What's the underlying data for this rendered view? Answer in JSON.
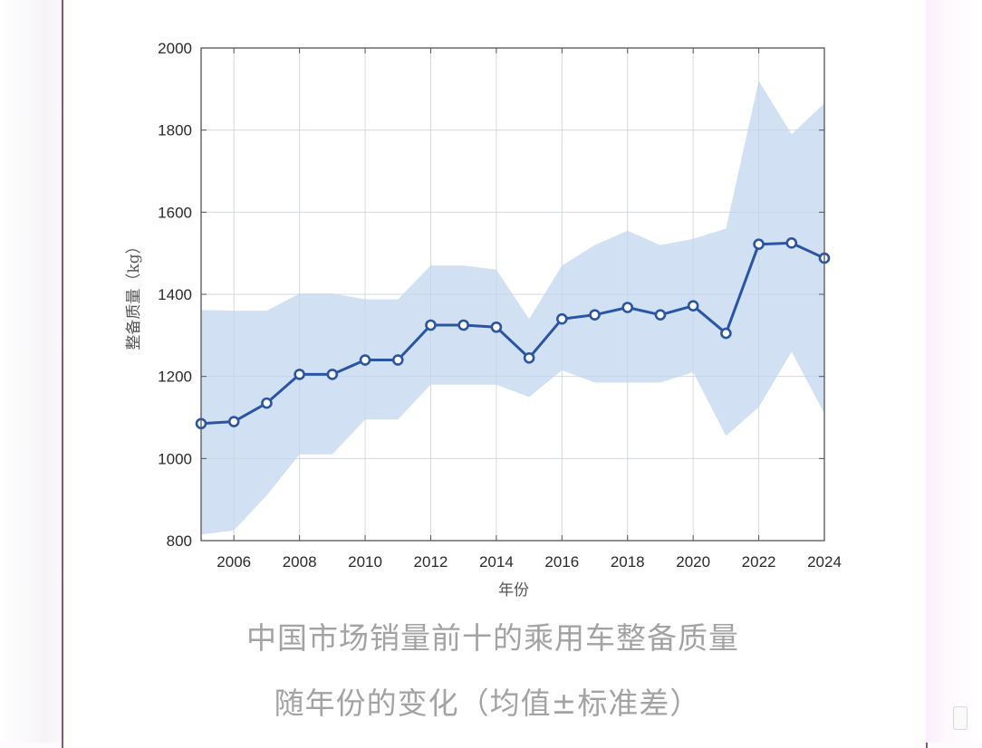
{
  "chart_data": {
    "type": "line",
    "title": "中国市场销量前十的乘用车整备质量随年份的变化（均值±标准差）",
    "xlabel": "年份",
    "ylabel": "整备质量（kg）",
    "xlim": [
      2005,
      2024
    ],
    "ylim": [
      800,
      2000
    ],
    "xticks": [
      2006,
      2008,
      2010,
      2012,
      2014,
      2016,
      2018,
      2020,
      2022,
      2024
    ],
    "yticks": [
      800,
      1000,
      1200,
      1400,
      1600,
      1800,
      2000
    ],
    "grid": true,
    "legend": null,
    "x": [
      2005,
      2006,
      2007,
      2008,
      2009,
      2010,
      2011,
      2012,
      2013,
      2014,
      2015,
      2016,
      2017,
      2018,
      2019,
      2020,
      2021,
      2022,
      2023,
      2024
    ],
    "series": [
      {
        "name": "均值",
        "type": "line",
        "marker": "circle-open",
        "color": "#2a55a5",
        "values": [
          1085,
          1090,
          1135,
          1205,
          1205,
          1240,
          1240,
          1325,
          1325,
          1320,
          1245,
          1340,
          1350,
          1368,
          1350,
          1372,
          1305,
          1522,
          1525,
          1488
        ]
      },
      {
        "name": "均值+标准差",
        "type": "band-upper",
        "color": "#c9dcf1",
        "values": [
          1362,
          1360,
          1360,
          1402,
          1402,
          1388,
          1388,
          1470,
          1470,
          1460,
          1340,
          1470,
          1520,
          1555,
          1520,
          1535,
          1560,
          1920,
          1790,
          1865
        ]
      },
      {
        "name": "均值-标准差",
        "type": "band-lower",
        "color": "#c9dcf1",
        "values": [
          815,
          825,
          910,
          1010,
          1010,
          1095,
          1095,
          1180,
          1180,
          1180,
          1150,
          1215,
          1185,
          1185,
          1185,
          1210,
          1055,
          1125,
          1260,
          1110
        ]
      }
    ]
  },
  "caption": {
    "line1": "中国市场销量前十的乘用车整备质量",
    "line2": "随年份的变化（均值±标准差）"
  },
  "axes": {
    "xlabel": "年份",
    "ylabel": "整备质量（kg）"
  },
  "colors": {
    "line": "#2a55a5",
    "band": "#c9dcf1",
    "frame": "#7d5a84",
    "caption": "#a3a3a3"
  }
}
